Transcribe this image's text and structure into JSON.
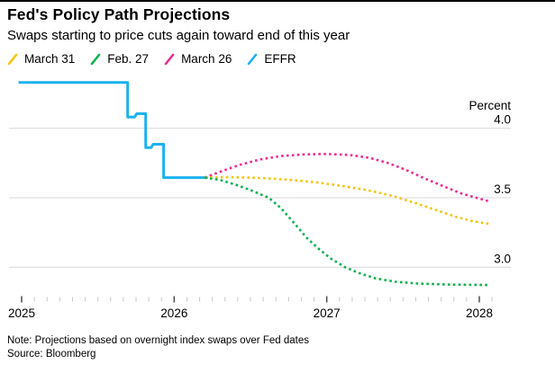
{
  "header": {
    "title": "Fed's Policy Path Projections",
    "subtitle": "Swaps starting to price cuts again toward end of this year"
  },
  "legend": [
    {
      "label": "March 31",
      "color": "#f2c40d"
    },
    {
      "label": "Feb. 27",
      "color": "#0cb14b"
    },
    {
      "label": "March 26",
      "color": "#ef2a93"
    },
    {
      "label": "EFFR",
      "color": "#1cb2f0"
    }
  ],
  "chart_data": {
    "type": "line",
    "title": "Fed's Policy Path Projections",
    "subtitle": "Swaps starting to price cuts again toward end of this year",
    "ylabel": "Percent",
    "unit": "percent",
    "x_range": [
      2024.92,
      2028.21
    ],
    "ylim": [
      2.75,
      4.45
    ],
    "y_gridlines": [
      4.0,
      3.5,
      3.0
    ],
    "y_tick_labels": [
      "4.0",
      "3.5",
      "3.0"
    ],
    "x_ticks_major": [
      2025,
      2026,
      2027,
      2028
    ],
    "x_tick_labels": [
      "2025",
      "2026",
      "2027",
      "2028"
    ],
    "x_minor_tick_interval_months": 1,
    "legend_position": "top-left",
    "layout": {
      "grid_color": "#d8d8d8",
      "minor_tick_color": "#c8c8c8",
      "major_tick_color": "#4d4d4d",
      "text_color": "#000000"
    },
    "series": [
      {
        "name": "EFFR",
        "color": "#1cb2f0",
        "style": "solid",
        "points": [
          [
            2024.98,
            4.33
          ],
          [
            2025.695,
            4.33
          ],
          [
            2025.695,
            4.08
          ],
          [
            2025.74,
            4.08
          ],
          [
            2025.755,
            4.105
          ],
          [
            2025.813,
            4.105
          ],
          [
            2025.813,
            3.86
          ],
          [
            2025.848,
            3.86
          ],
          [
            2025.862,
            3.885
          ],
          [
            2025.931,
            3.885
          ],
          [
            2025.931,
            3.645
          ],
          [
            2026.22,
            3.645
          ]
        ]
      },
      {
        "name": "March 26",
        "color": "#ef2a93",
        "style": "dotted",
        "points": [
          [
            2026.2,
            3.645
          ],
          [
            2026.32,
            3.695
          ],
          [
            2026.44,
            3.74
          ],
          [
            2026.56,
            3.775
          ],
          [
            2026.7,
            3.8
          ],
          [
            2026.85,
            3.812
          ],
          [
            2027.0,
            3.815
          ],
          [
            2027.15,
            3.808
          ],
          [
            2027.28,
            3.787
          ],
          [
            2027.4,
            3.75
          ],
          [
            2027.52,
            3.7
          ],
          [
            2027.64,
            3.64
          ],
          [
            2027.76,
            3.585
          ],
          [
            2027.88,
            3.532
          ],
          [
            2027.99,
            3.497
          ],
          [
            2028.07,
            3.473
          ]
        ]
      },
      {
        "name": "March 31",
        "color": "#f2c40d",
        "style": "dotted",
        "points": [
          [
            2026.2,
            3.645
          ],
          [
            2026.35,
            3.648
          ],
          [
            2026.5,
            3.645
          ],
          [
            2026.65,
            3.637
          ],
          [
            2026.8,
            3.625
          ],
          [
            2026.95,
            3.608
          ],
          [
            2027.1,
            3.585
          ],
          [
            2027.25,
            3.558
          ],
          [
            2027.4,
            3.522
          ],
          [
            2027.47,
            3.5
          ],
          [
            2027.6,
            3.455
          ],
          [
            2027.72,
            3.41
          ],
          [
            2027.84,
            3.365
          ],
          [
            2027.96,
            3.33
          ],
          [
            2028.07,
            3.312
          ]
        ]
      },
      {
        "name": "Feb. 27",
        "color": "#0cb14b",
        "style": "dotted",
        "points": [
          [
            2026.2,
            3.645
          ],
          [
            2026.3,
            3.628
          ],
          [
            2026.4,
            3.595
          ],
          [
            2026.5,
            3.555
          ],
          [
            2026.62,
            3.5
          ],
          [
            2026.7,
            3.425
          ],
          [
            2026.8,
            3.3
          ],
          [
            2026.87,
            3.21
          ],
          [
            2026.95,
            3.13
          ],
          [
            2027.03,
            3.06
          ],
          [
            2027.12,
            3.0
          ],
          [
            2027.22,
            2.955
          ],
          [
            2027.32,
            2.92
          ],
          [
            2027.45,
            2.895
          ],
          [
            2027.6,
            2.882
          ],
          [
            2027.8,
            2.875
          ],
          [
            2028.07,
            2.872
          ]
        ]
      }
    ]
  },
  "footer": {
    "note": "Note: Projections based on overnight index swaps over Fed dates",
    "source": "Source: Bloomberg"
  }
}
